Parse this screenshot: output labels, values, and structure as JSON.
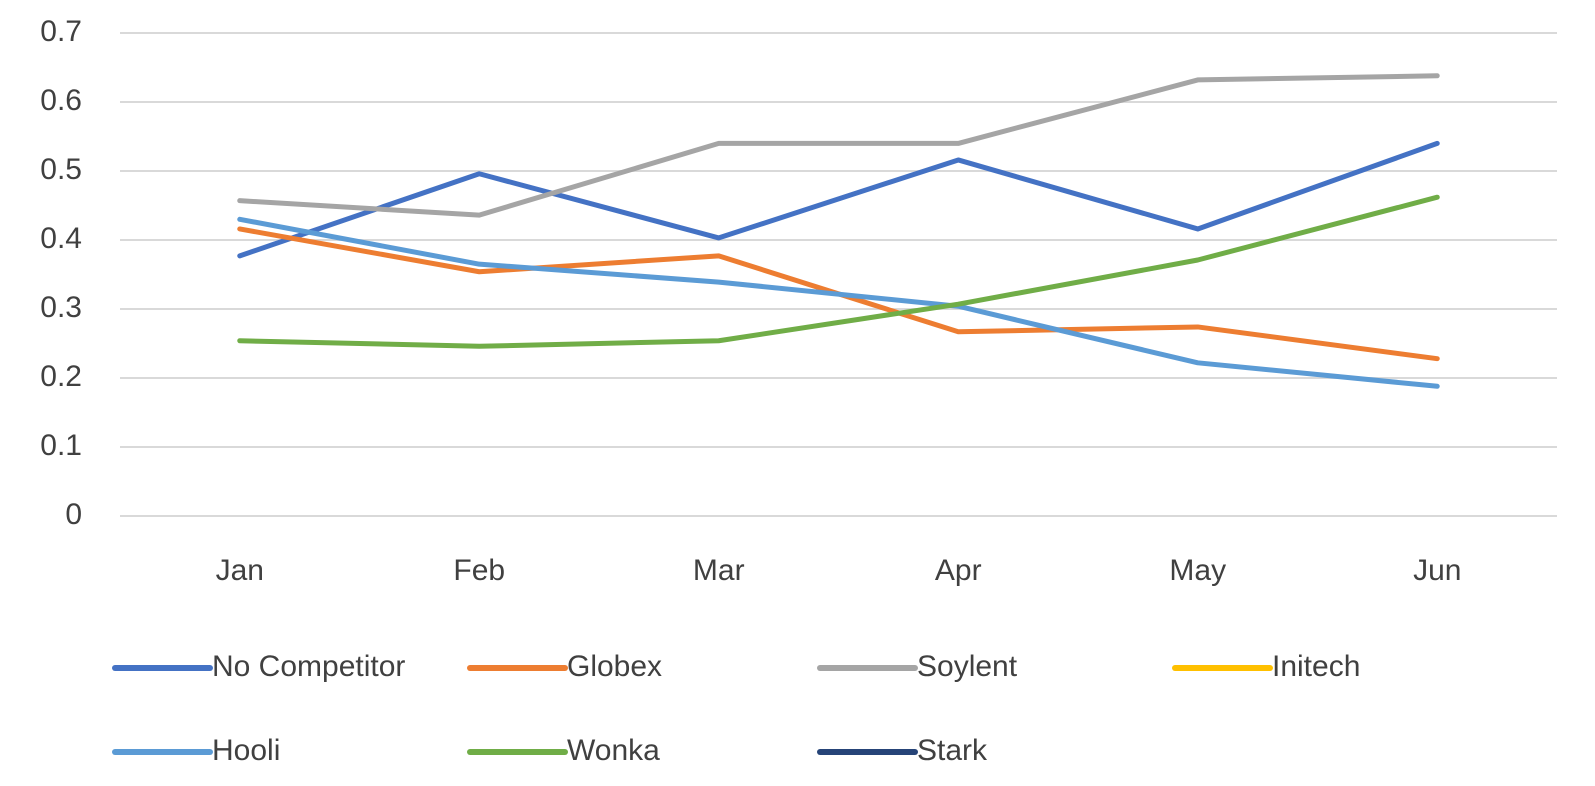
{
  "chart_data": {
    "type": "line",
    "categories": [
      "Jan",
      "Feb",
      "Mar",
      "Apr",
      "May",
      "Jun"
    ],
    "series": [
      {
        "name": "No Competitor",
        "color": "#4472c4",
        "values": [
          0.377,
          0.496,
          0.403,
          0.516,
          0.416,
          0.54
        ]
      },
      {
        "name": "Globex",
        "color": "#ed7d31",
        "values": [
          0.416,
          0.354,
          0.377,
          0.267,
          0.274,
          0.228
        ]
      },
      {
        "name": "Soylent",
        "color": "#a5a5a5",
        "values": [
          0.457,
          0.436,
          0.54,
          0.54,
          0.632,
          0.638
        ]
      },
      {
        "name": "Initech",
        "color": "#ffc000",
        "values": [
          null,
          null,
          null,
          null,
          null,
          null
        ]
      },
      {
        "name": "Hooli",
        "color": "#5b9bd5",
        "values": [
          0.43,
          0.365,
          0.339,
          0.304,
          0.222,
          0.188
        ]
      },
      {
        "name": "Wonka",
        "color": "#70ad47",
        "values": [
          0.254,
          0.246,
          0.254,
          0.307,
          0.371,
          0.462
        ]
      },
      {
        "name": "Stark",
        "color": "#264478",
        "values": [
          null,
          null,
          null,
          null,
          null,
          null
        ]
      }
    ],
    "ylim": [
      0,
      0.7
    ],
    "yticks": [
      0,
      0.1,
      0.2,
      0.3,
      0.4,
      0.5,
      0.6,
      0.7
    ],
    "grid": true,
    "legend": "bottom"
  }
}
